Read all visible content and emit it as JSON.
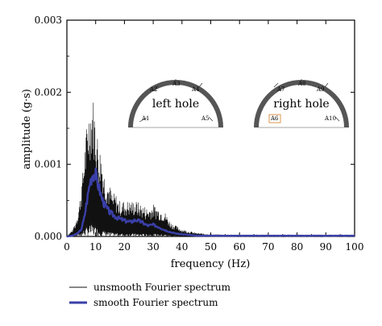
{
  "chart_data": {
    "type": "line",
    "xlabel": "frequency (Hz)",
    "ylabel": "amplitude (g·s)",
    "xlim": [
      0,
      100
    ],
    "ylim": [
      0,
      0.003
    ],
    "x_ticks": [
      "0",
      "10",
      "20",
      "30",
      "40",
      "50",
      "60",
      "70",
      "80",
      "90",
      "100"
    ],
    "y_ticks": [
      "0.000",
      "0.001",
      "0.002",
      "0.003"
    ],
    "grid": false,
    "legend_position": "bottom-left, outside plot",
    "series": [
      {
        "name": "unsmooth Fourier spectrum",
        "color": "#111111",
        "x": [
          0,
          1,
          2,
          3,
          4,
          5,
          6,
          7,
          8,
          9,
          10,
          11,
          12,
          13,
          14,
          15,
          16,
          17,
          18,
          19,
          20,
          22,
          24,
          26,
          28,
          30,
          32,
          34,
          36,
          38,
          40,
          45,
          50,
          60,
          70,
          80,
          90,
          100
        ],
        "values": [
          0.0,
          5e-05,
          0.0001,
          0.0002,
          0.0004,
          0.0007,
          0.0012,
          0.0016,
          0.0019,
          0.002,
          0.0017,
          0.0013,
          0.0012,
          0.0009,
          0.0008,
          0.0007,
          0.0006,
          0.0006,
          0.0005,
          0.0005,
          0.0005,
          0.0005,
          0.0005,
          0.00045,
          0.0004,
          0.00045,
          0.0004,
          0.00035,
          0.0002,
          0.00015,
          0.0001,
          5e-05,
          3e-05,
          2e-05,
          2e-05,
          2e-05,
          2e-05,
          2e-05
        ]
      },
      {
        "name": "smooth Fourier spectrum",
        "color": "#3a3fa8",
        "x": [
          0,
          2,
          4,
          5,
          6,
          7,
          8,
          9,
          10,
          11,
          12,
          13,
          14,
          15,
          16,
          18,
          20,
          22,
          24,
          26,
          28,
          30,
          32,
          34,
          36,
          38,
          40,
          45,
          50,
          60,
          70,
          80,
          90,
          100
        ],
        "values": [
          0.0,
          1e-05,
          5e-05,
          0.0001,
          0.00025,
          0.0005,
          0.00075,
          0.00088,
          0.00085,
          0.0007,
          0.00055,
          0.00045,
          0.00038,
          0.00033,
          0.0003,
          0.00025,
          0.00022,
          0.0002,
          0.00023,
          0.0002,
          0.00015,
          0.00016,
          0.00013,
          9e-05,
          6e-05,
          4e-05,
          3e-05,
          1e-05,
          1e-05,
          1e-05,
          1e-05,
          1e-05,
          1e-05,
          1e-05
        ]
      }
    ]
  },
  "inset": {
    "left_hole": {
      "title": "left hole",
      "sensors": [
        "A1",
        "A2",
        "A3",
        "A4",
        "A5"
      ]
    },
    "right_hole": {
      "title": "right hole",
      "sensors": [
        "A6",
        "A7",
        "A8",
        "A9",
        "A10"
      ],
      "highlighted_sensor": "A6",
      "highlight_color": "#d98a3a"
    }
  }
}
